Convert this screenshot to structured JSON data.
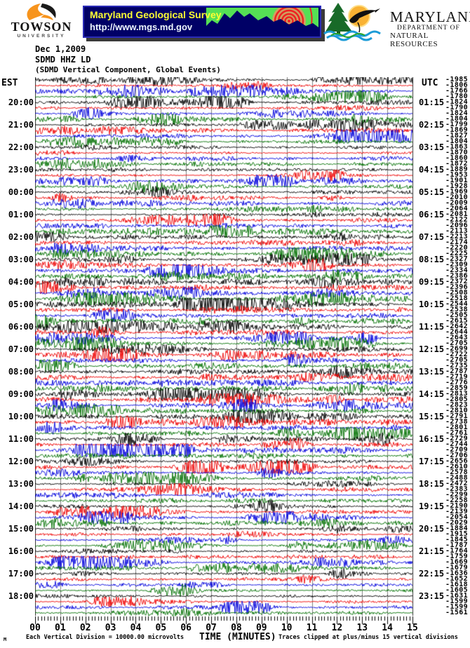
{
  "banner": {
    "towson": {
      "name": "TOWSON",
      "subtitle": "UNIVERSITY"
    },
    "mgs": {
      "title": "Maryland Geological Survey",
      "url": "http://www.mgs.md.gov"
    },
    "dnr": {
      "name": "MARYLAND",
      "dept_line1": "DEPARTMENT OF",
      "dept_line2": "NATURAL RESOURCES"
    }
  },
  "header": {
    "date": "Dec 1,2009",
    "station": "SDMD HHZ LD",
    "description": "(SDMD Vertical Component, Global Events)"
  },
  "left_axis": {
    "label": "EST",
    "times": [
      "20:00",
      "21:00",
      "22:00",
      "23:00",
      "00:00",
      "01:00",
      "02:00",
      "03:00",
      "04:00",
      "05:00",
      "06:00",
      "07:00",
      "08:00",
      "09:00",
      "10:00",
      "11:00",
      "12:00",
      "13:00",
      "14:00",
      "15:00",
      "16:00",
      "17:00",
      "18:00"
    ]
  },
  "right_axis": {
    "label": "UTC",
    "times": [
      "01:15",
      "02:15",
      "03:15",
      "04:15",
      "05:15",
      "06:15",
      "07:15",
      "08:15",
      "09:15",
      "10:15",
      "11:15",
      "12:15",
      "13:15",
      "14:15",
      "15:15",
      "16:15",
      "17:15",
      "18:15",
      "19:15",
      "20:15",
      "21:15",
      "22:15",
      "23:15"
    ]
  },
  "footer": {
    "left": "Each Vertical Division = 10000.00 microvolts",
    "right": "Traces clipped at plus/minus 15 vertical divisions",
    "watermark": "M"
  },
  "chart_data": {
    "type": "line",
    "subtype": "helicorder-seismogram",
    "title": "SDMD HHZ LD (SDMD Vertical Component, Global Events)",
    "date": "Dec 1,2009",
    "xlabel": "TIME (MINUTES)",
    "x_range_minutes": [
      0,
      15
    ],
    "x_ticks": [
      "00",
      "01",
      "02",
      "03",
      "04",
      "05",
      "06",
      "07",
      "08",
      "09",
      "10",
      "11",
      "12",
      "13",
      "14",
      "15"
    ],
    "minutes_per_row": 15,
    "rows": 96,
    "trace_color_cycle": [
      "#000000",
      "#ee0000",
      "#0000dd",
      "#007000"
    ],
    "grid_color": "#808080",
    "grid_edge_color": "#333333",
    "row_values": [
      "-1985",
      "-1806",
      "-1766",
      "-1780",
      "-1824",
      "-1790",
      "-1824",
      "-1804",
      "-1799",
      "-1869",
      "-1827",
      "-1804",
      "-1863",
      "-1870",
      "-1860",
      "-1872",
      "-1889",
      "-1953",
      "-1901",
      "-1928",
      "-1969",
      "-2010",
      "-2009",
      "-2064",
      "-2081",
      "-2122",
      "-2096",
      "-2113",
      "-2213",
      "-2174",
      "-2220",
      "-2225",
      "-2327",
      "-2309",
      "-2334",
      "-2386",
      "-2372",
      "-2396",
      "-2508",
      "-2518",
      "-2544",
      "-2538",
      "-2505",
      "-2615",
      "-2642",
      "-2644",
      "-2643",
      "-2705",
      "-2699",
      "-2722",
      "-2705",
      "-2735",
      "-2787",
      "-2719",
      "-2776",
      "-2859",
      "-2813",
      "-2805",
      "-2823",
      "-2810",
      "-2791",
      "-2738",
      "-2801",
      "-2761",
      "-2729",
      "-2744",
      "-2709",
      "-2706",
      "-2656",
      "-2610",
      "-2578",
      "-2488",
      "-2472",
      "-2383",
      "-2299",
      "-2258",
      "-2190",
      "-2139",
      "-2054",
      "-2029",
      "-1884",
      "-1915",
      "-1845",
      "-1787",
      "-1764",
      "-1759",
      "-1669",
      "-1679",
      "-1636",
      "-1652",
      "-1618",
      "-1605",
      "-1631",
      "-1599",
      "-1599",
      "-1561"
    ]
  }
}
